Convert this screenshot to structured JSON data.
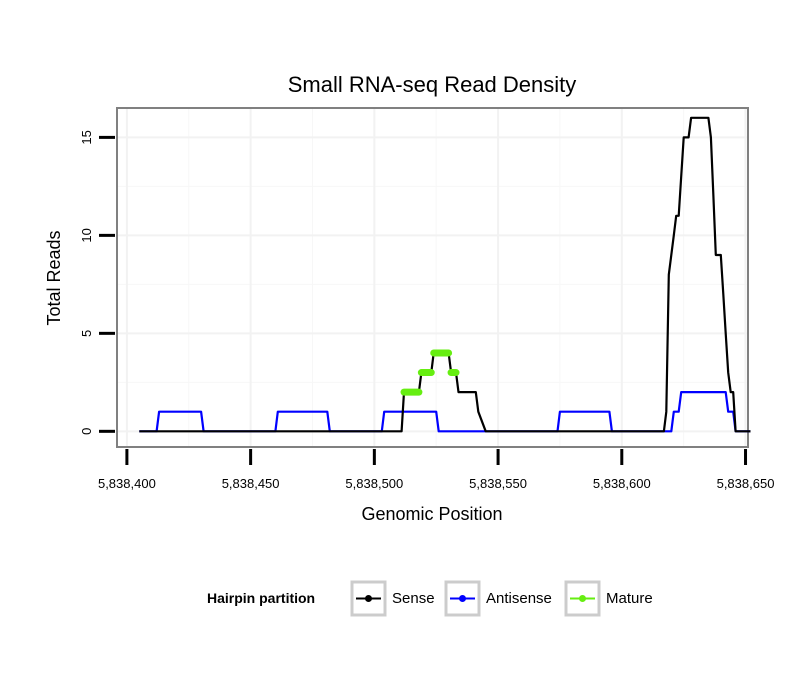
{
  "chart_data": {
    "type": "line",
    "title": "Small RNA-seq Read Density",
    "xlabel": "Genomic Position",
    "ylabel": "Total Reads",
    "xlim": [
      5838396,
      5838651
    ],
    "ylim": [
      -0.8,
      16.5
    ],
    "x_ticks": [
      5838400,
      5838450,
      5838500,
      5838550,
      5838600,
      5838650
    ],
    "x_tick_labels": [
      "5,838,400",
      "5,838,450",
      "5,838,500",
      "5,838,550",
      "5,838,600",
      "5,838,650"
    ],
    "y_ticks": [
      0,
      5,
      10,
      15
    ],
    "y_tick_labels": [
      "0",
      "5",
      "10",
      "15"
    ],
    "grid": true,
    "legend_placement": "bottom",
    "legend_title": "Hairpin partition",
    "series": [
      {
        "name": "Sense",
        "color": "#000000",
        "points": [
          [
            5838405,
            0
          ],
          [
            5838511,
            0
          ],
          [
            5838512,
            2
          ],
          [
            5838518,
            2
          ],
          [
            5838519,
            3
          ],
          [
            5838523,
            3
          ],
          [
            5838524,
            4
          ],
          [
            5838530,
            4
          ],
          [
            5838531,
            3
          ],
          [
            5838533,
            3
          ],
          [
            5838534,
            2
          ],
          [
            5838541,
            2
          ],
          [
            5838542,
            1
          ],
          [
            5838545,
            0
          ],
          [
            5838617,
            0
          ],
          [
            5838618,
            1
          ],
          [
            5838619,
            8
          ],
          [
            5838621,
            10
          ],
          [
            5838622,
            11
          ],
          [
            5838623,
            11
          ],
          [
            5838624,
            13
          ],
          [
            5838625,
            15
          ],
          [
            5838627,
            15
          ],
          [
            5838628,
            16
          ],
          [
            5838635,
            16
          ],
          [
            5838636,
            15
          ],
          [
            5838637,
            12
          ],
          [
            5838638,
            9
          ],
          [
            5838640,
            9
          ],
          [
            5838641,
            7
          ],
          [
            5838642,
            5
          ],
          [
            5838643,
            3
          ],
          [
            5838644,
            2
          ],
          [
            5838645,
            2
          ],
          [
            5838646,
            0
          ],
          [
            5838652,
            0
          ]
        ]
      },
      {
        "name": "Antisense",
        "color": "#0000ff",
        "points": [
          [
            5838405,
            0
          ],
          [
            5838412,
            0
          ],
          [
            5838413,
            1
          ],
          [
            5838430,
            1
          ],
          [
            5838431,
            0
          ],
          [
            5838460,
            0
          ],
          [
            5838461,
            1
          ],
          [
            5838481,
            1
          ],
          [
            5838482,
            0
          ],
          [
            5838503,
            0
          ],
          [
            5838504,
            1
          ],
          [
            5838525,
            1
          ],
          [
            5838526,
            0
          ],
          [
            5838574,
            0
          ],
          [
            5838575,
            1
          ],
          [
            5838595,
            1
          ],
          [
            5838596,
            0
          ],
          [
            5838620,
            0
          ],
          [
            5838621,
            1
          ],
          [
            5838623,
            1
          ],
          [
            5838624,
            2
          ],
          [
            5838642,
            2
          ],
          [
            5838643,
            1
          ],
          [
            5838645,
            1
          ],
          [
            5838646,
            0
          ],
          [
            5838652,
            0
          ]
        ]
      },
      {
        "name": "Mature",
        "color": "#66ee11",
        "points": [
          [
            5838512,
            2
          ],
          [
            5838518,
            2
          ],
          [
            5838519,
            3
          ],
          [
            5838523,
            3
          ],
          [
            5838524,
            4
          ],
          [
            5838530,
            4
          ],
          [
            5838531,
            3
          ],
          [
            5838533,
            3
          ]
        ],
        "segments": [
          [
            5838512,
            5838518,
            2
          ],
          [
            5838519,
            5838523,
            3
          ],
          [
            5838524,
            5838530,
            4
          ],
          [
            5838531,
            5838533,
            3
          ]
        ]
      }
    ]
  }
}
